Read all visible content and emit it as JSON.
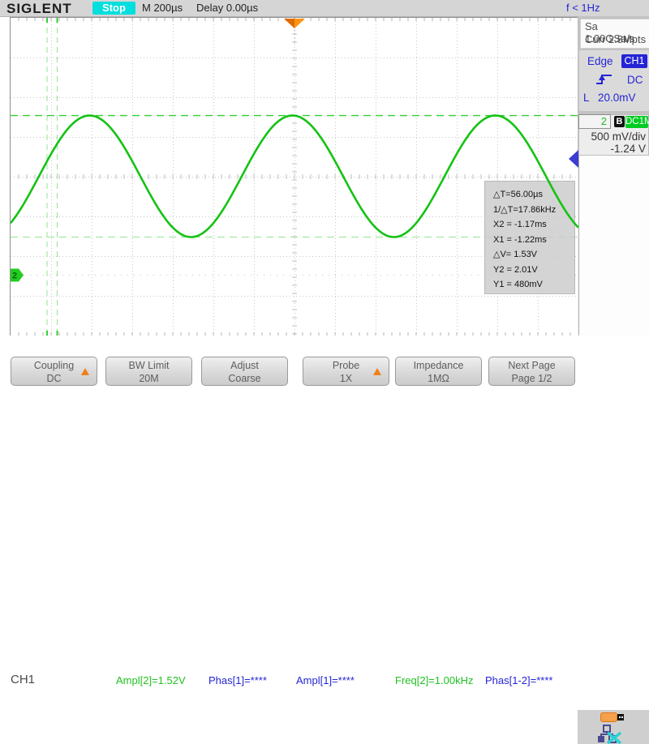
{
  "topbar": {
    "logo": "SIGLENT",
    "run_state": "Stop",
    "timebase": "M 200µs",
    "delay": "Delay 0.00µs",
    "freq_counter": "f < 1Hz"
  },
  "acquisition": {
    "sample_rate": "Sa 1.00GSa/s",
    "memory_depth": "Curr 2.8Mpts"
  },
  "trigger": {
    "type": "Edge",
    "source": "CH1",
    "coupling": "DC",
    "level_label": "L",
    "level_value": "20.0mV"
  },
  "channel2": {
    "number": "2",
    "bw_limit_badge": "B",
    "coupling_badge": "DC1M",
    "scale": "500 mV/div",
    "offset": "-1.24 V"
  },
  "cursor_box": {
    "rows": [
      "△T=56.00µs",
      "1/△T=17.86kHz",
      "X2 = -1.17ms",
      "X1 = -1.22ms",
      "△V= 1.53V",
      "Y2 = 2.01V",
      "Y1 = 480mV"
    ]
  },
  "status": {
    "channel_label": "CH1",
    "items": [
      {
        "text": "Ampl[2]=1.52V",
        "color": "green"
      },
      {
        "text": "Phas[1]=****",
        "color": "blue"
      },
      {
        "text": "Ampl[1]=****",
        "color": "blue"
      },
      {
        "text": "Freq[2]=1.00kHz",
        "color": "green"
      },
      {
        "text": "Phas[1-2]=****",
        "color": "blue"
      }
    ]
  },
  "menu": {
    "buttons": [
      {
        "line1": "Coupling",
        "line2": "DC",
        "arrow": true
      },
      {
        "line1": "BW Limit",
        "line2": "20M",
        "arrow": false
      },
      {
        "line1": "Adjust",
        "line2": "Coarse",
        "arrow": false
      },
      {
        "line1": "Probe",
        "line2": "1X",
        "arrow": true
      },
      {
        "line1": "Impedance",
        "line2": "1MΩ",
        "arrow": false
      },
      {
        "line1": "Next Page",
        "line2": "Page 1/2",
        "arrow": false
      }
    ]
  },
  "scope": {
    "h_divisions": 14,
    "v_divisions": 8,
    "time_per_div_ms": 0.2,
    "delay_ms": 0,
    "ch2_volts_per_div": 0.5,
    "ch2_offset_v": -1.24,
    "wave": {
      "type": "sine",
      "freq_khz": 1.0,
      "v_max": 2.01,
      "v_min": 0.48,
      "peak_t_ms": -1.01
    },
    "cursors": {
      "x1_ms": -1.22,
      "x2_ms": -1.17,
      "y1_v": 0.48,
      "y2_v": 2.01
    }
  },
  "colors": {
    "trace_green": "#15c215",
    "cursor_bright": "#33cf33",
    "cursor_dim": "#93e593",
    "grid": "#c7c7c7",
    "trigger_blue": "#3c3cd2",
    "accent_orange": "#f08019",
    "stop_cyan": "#00dede",
    "badge_green": "#00cc22",
    "text_blue": "#2424d6"
  }
}
